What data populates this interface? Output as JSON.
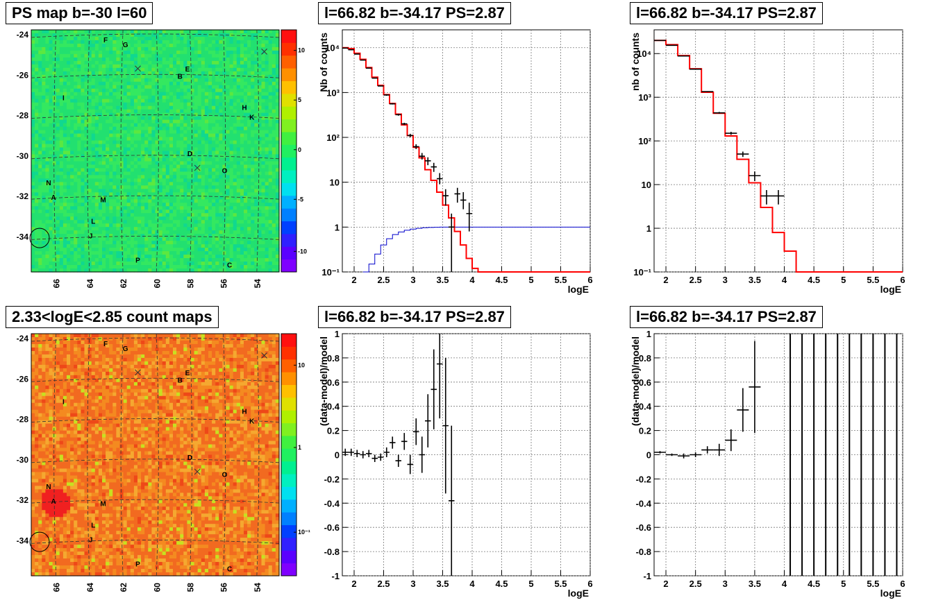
{
  "panel_titles": {
    "ps_map": "PS map b=-30 l=60",
    "count_map": "2.33<logE<2.85 count maps",
    "spec_left": "l=66.82 b=-34.17 PS=2.87",
    "spec_right": "l=66.82 b=-34.17 PS=2.87",
    "res_left": "l=66.82 b=-34.17 PS=2.87",
    "res_right": "l=66.82 b=-34.17 PS=2.87"
  },
  "colors": {
    "model": "#ff0000",
    "efficiency": "#0000cc",
    "data": "#000000",
    "grid": "#777777"
  },
  "chart_data": [
    {
      "type": "heatmap",
      "id": "ps_map",
      "title": "PS map b=-30 l=60",
      "x_ticks": [
        "66",
        "64",
        "62",
        "60",
        "58",
        "56",
        "54"
      ],
      "y_ticks": [
        "-24",
        "-26",
        "-28",
        "-30",
        "-32",
        "-34"
      ],
      "colorbar_ticks": [
        "10",
        "5",
        "0",
        "-5",
        "-10"
      ],
      "colorbar_range": [
        -12,
        12
      ],
      "colorbar_scale": "linear",
      "base_color": "#22e070",
      "sources": [
        {
          "label": "F"
        },
        {
          "label": "G"
        },
        {
          "label": "E"
        },
        {
          "label": "B"
        },
        {
          "label": "I"
        },
        {
          "label": "H"
        },
        {
          "label": "K"
        },
        {
          "label": "D"
        },
        {
          "label": "O"
        },
        {
          "label": "N"
        },
        {
          "label": "A"
        },
        {
          "label": "M"
        },
        {
          "label": "L"
        },
        {
          "label": "J"
        },
        {
          "label": "P"
        },
        {
          "label": "C"
        }
      ]
    },
    {
      "type": "heatmap",
      "id": "count_map",
      "title": "2.33<logE<2.85 count maps",
      "x_ticks": [
        "66",
        "64",
        "62",
        "60",
        "58",
        "56",
        "54"
      ],
      "y_ticks": [
        "-24",
        "-26",
        "-28",
        "-30",
        "-32",
        "-34"
      ],
      "colorbar_ticks": [
        "10",
        "1",
        "10⁻¹"
      ],
      "colorbar_scale": "log",
      "base_color": "#f26a20",
      "sources": [
        {
          "label": "F"
        },
        {
          "label": "G"
        },
        {
          "label": "E"
        },
        {
          "label": "B"
        },
        {
          "label": "I"
        },
        {
          "label": "H"
        },
        {
          "label": "K"
        },
        {
          "label": "D"
        },
        {
          "label": "O"
        },
        {
          "label": "N"
        },
        {
          "label": "A"
        },
        {
          "label": "M"
        },
        {
          "label": "L"
        },
        {
          "label": "J"
        },
        {
          "label": "P"
        },
        {
          "label": "C"
        }
      ]
    },
    {
      "type": "line",
      "id": "spec_left",
      "title": "l=66.82 b=-34.17 PS=2.87",
      "xlabel": "logE",
      "ylabel": "Nb of counts",
      "xlim": [
        1.8,
        6
      ],
      "ylim": [
        0.1,
        25000
      ],
      "yscale": "log",
      "x_ticks": [
        "2",
        "2.5",
        "3",
        "3.5",
        "4",
        "4.5",
        "5",
        "5.5",
        "6"
      ],
      "y_ticks": [
        "10⁻¹",
        "1",
        "10",
        "10²",
        "10³",
        "10⁴"
      ],
      "grid": true,
      "model_step": {
        "edges": [
          1.8,
          1.9,
          2.0,
          2.1,
          2.2,
          2.3,
          2.4,
          2.5,
          2.6,
          2.7,
          2.8,
          2.9,
          3.0,
          3.1,
          3.2,
          3.3,
          3.4,
          3.5,
          3.6,
          3.7,
          3.8,
          3.9,
          4.0,
          4.1,
          4.2,
          6.0
        ],
        "values": [
          10000,
          9500,
          7500,
          5500,
          3600,
          2200,
          1450,
          900,
          570,
          330,
          190,
          110,
          60,
          35,
          19,
          11,
          6,
          3.1,
          1.6,
          0.8,
          0.4,
          0.2,
          0.12,
          0.1,
          0.1
        ]
      },
      "data_points": [
        {
          "x": 1.85,
          "y": 9800,
          "yerr_lo": 9700,
          "yerr_hi": 9900
        },
        {
          "x": 1.95,
          "y": 9000,
          "yerr_lo": 8900,
          "yerr_hi": 9100
        },
        {
          "x": 2.05,
          "y": 7200,
          "yerr_lo": 7100,
          "yerr_hi": 7300
        },
        {
          "x": 2.15,
          "y": 5300,
          "yerr_lo": 5200,
          "yerr_hi": 5400
        },
        {
          "x": 2.25,
          "y": 3500,
          "yerr_lo": 3400,
          "yerr_hi": 3600
        },
        {
          "x": 2.35,
          "y": 2100,
          "yerr_lo": 2050,
          "yerr_hi": 2150
        },
        {
          "x": 2.45,
          "y": 1400,
          "yerr_lo": 1360,
          "yerr_hi": 1440
        },
        {
          "x": 2.55,
          "y": 880,
          "yerr_lo": 850,
          "yerr_hi": 910
        },
        {
          "x": 2.65,
          "y": 560,
          "yerr_lo": 540,
          "yerr_hi": 580
        },
        {
          "x": 2.75,
          "y": 320,
          "yerr_lo": 305,
          "yerr_hi": 335
        },
        {
          "x": 2.85,
          "y": 200,
          "yerr_lo": 188,
          "yerr_hi": 212
        },
        {
          "x": 2.95,
          "y": 110,
          "yerr_lo": 100,
          "yerr_hi": 120
        },
        {
          "x": 3.05,
          "y": 62,
          "yerr_lo": 55,
          "yerr_hi": 70
        },
        {
          "x": 3.15,
          "y": 38,
          "yerr_lo": 32,
          "yerr_hi": 45
        },
        {
          "x": 3.25,
          "y": 30,
          "yerr_lo": 24,
          "yerr_hi": 36
        },
        {
          "x": 3.35,
          "y": 22,
          "yerr_lo": 17,
          "yerr_hi": 27
        },
        {
          "x": 3.45,
          "y": 12,
          "yerr_lo": 9,
          "yerr_hi": 16
        },
        {
          "x": 3.55,
          "y": 5,
          "yerr_lo": 3,
          "yerr_hi": 7
        },
        {
          "x": 3.65,
          "y": 1,
          "yerr_lo": 0.1,
          "yerr_hi": 2
        },
        {
          "x": 3.75,
          "y": 5.5,
          "yerr_lo": 3.5,
          "yerr_hi": 7.5
        },
        {
          "x": 3.85,
          "y": 4,
          "yerr_lo": 2.5,
          "yerr_hi": 6
        },
        {
          "x": 3.95,
          "y": 2,
          "yerr_lo": 0.8,
          "yerr_hi": 3.5
        }
      ],
      "efficiency_step": {
        "edges": [
          2.15,
          2.25,
          2.35,
          2.45,
          2.55,
          2.65,
          2.75,
          2.85,
          2.95,
          3.05,
          3.15,
          3.25,
          3.35,
          3.45,
          6.0
        ],
        "values": [
          0.1,
          0.15,
          0.25,
          0.4,
          0.55,
          0.68,
          0.78,
          0.85,
          0.9,
          0.94,
          0.97,
          0.98,
          0.99,
          1.0
        ]
      }
    },
    {
      "type": "line",
      "id": "spec_right",
      "title": "l=66.82 b=-34.17 PS=2.87",
      "xlabel": "logE",
      "ylabel": "nb of counts",
      "xlim": [
        1.8,
        6
      ],
      "ylim": [
        0.1,
        35000
      ],
      "yscale": "log",
      "x_ticks": [
        "2",
        "2.5",
        "3",
        "3.5",
        "4",
        "4.5",
        "5",
        "5.5",
        "6"
      ],
      "y_ticks": [
        "10⁻¹",
        "1",
        "10",
        "10²",
        "10³",
        "10⁴"
      ],
      "grid": true,
      "model_step": {
        "edges": [
          1.8,
          2.0,
          2.2,
          2.4,
          2.6,
          2.8,
          3.0,
          3.2,
          3.4,
          3.6,
          3.8,
          4.0,
          4.2,
          6.0
        ],
        "values": [
          20000,
          16000,
          9000,
          4500,
          1300,
          430,
          130,
          38,
          11,
          3,
          0.8,
          0.3,
          0.1
        ]
      },
      "data_points": [
        {
          "x": 1.9,
          "y": 20000,
          "yerr_lo": 19800,
          "yerr_hi": 20200
        },
        {
          "x": 2.1,
          "y": 15500,
          "yerr_lo": 15300,
          "yerr_hi": 15700
        },
        {
          "x": 2.3,
          "y": 8800,
          "yerr_lo": 8700,
          "yerr_hi": 8900
        },
        {
          "x": 2.5,
          "y": 4400,
          "yerr_lo": 4300,
          "yerr_hi": 4500
        },
        {
          "x": 2.7,
          "y": 1350,
          "yerr_lo": 1310,
          "yerr_hi": 1390
        },
        {
          "x": 2.9,
          "y": 440,
          "yerr_lo": 420,
          "yerr_hi": 460
        },
        {
          "x": 3.1,
          "y": 150,
          "yerr_lo": 138,
          "yerr_hi": 162
        },
        {
          "x": 3.3,
          "y": 50,
          "yerr_lo": 43,
          "yerr_hi": 57
        },
        {
          "x": 3.5,
          "y": 16,
          "yerr_lo": 12,
          "yerr_hi": 20
        },
        {
          "x": 3.7,
          "y": 5.5,
          "yerr_lo": 3.5,
          "yerr_hi": 7.5
        },
        {
          "x": 3.9,
          "y": 5.5,
          "yerr_lo": 3.5,
          "yerr_hi": 7.5
        }
      ]
    },
    {
      "type": "scatter",
      "id": "res_left",
      "title": "l=66.82 b=-34.17 PS=2.87",
      "xlabel": "logE",
      "ylabel": "(data-model)/model",
      "xlim": [
        1.8,
        6
      ],
      "ylim": [
        -1,
        1
      ],
      "x_ticks": [
        "2",
        "2.5",
        "3",
        "3.5",
        "4",
        "4.5",
        "5",
        "5.5",
        "6"
      ],
      "y_ticks": [
        "-1",
        "-0.8",
        "-0.6",
        "-0.4",
        "-0.2",
        "0",
        "0.2",
        "0.4",
        "0.6",
        "0.8",
        "1"
      ],
      "grid": true,
      "data_points": [
        {
          "x": 1.85,
          "y": 0.02,
          "yerr": 0.03
        },
        {
          "x": 1.95,
          "y": 0.02,
          "yerr": 0.03
        },
        {
          "x": 2.05,
          "y": 0.01,
          "yerr": 0.03
        },
        {
          "x": 2.15,
          "y": 0.0,
          "yerr": 0.03
        },
        {
          "x": 2.25,
          "y": 0.01,
          "yerr": 0.03
        },
        {
          "x": 2.35,
          "y": -0.03,
          "yerr": 0.03
        },
        {
          "x": 2.45,
          "y": -0.02,
          "yerr": 0.03
        },
        {
          "x": 2.55,
          "y": 0.02,
          "yerr": 0.04
        },
        {
          "x": 2.65,
          "y": 0.1,
          "yerr": 0.05
        },
        {
          "x": 2.75,
          "y": -0.05,
          "yerr": 0.05
        },
        {
          "x": 2.85,
          "y": 0.11,
          "yerr": 0.07
        },
        {
          "x": 2.95,
          "y": -0.08,
          "yerr": 0.08
        },
        {
          "x": 3.05,
          "y": 0.19,
          "yerr": 0.11
        },
        {
          "x": 3.15,
          "y": 0.0,
          "yerr": 0.15
        },
        {
          "x": 3.25,
          "y": 0.28,
          "yerr": 0.22
        },
        {
          "x": 3.35,
          "y": 0.54,
          "yerr": 0.33
        },
        {
          "x": 3.45,
          "y": 0.75,
          "yerr": 0.45
        },
        {
          "x": 3.55,
          "y": 0.24,
          "yerr": 0.56
        },
        {
          "x": 3.65,
          "y": -0.38,
          "yerr": 0.62
        }
      ]
    },
    {
      "type": "scatter",
      "id": "res_right",
      "title": "l=66.82 b=-34.17 PS=2.87",
      "xlabel": "logE",
      "ylabel": "(data-model)/model",
      "xlim": [
        1.8,
        6
      ],
      "ylim": [
        -1,
        1
      ],
      "x_ticks": [
        "2",
        "2.5",
        "3",
        "3.5",
        "4",
        "4.5",
        "5",
        "5.5",
        "6"
      ],
      "y_ticks": [
        "-1",
        "-0.8",
        "-0.6",
        "-0.4",
        "-0.2",
        "0",
        "0.2",
        "0.4",
        "0.6",
        "0.8",
        "1"
      ],
      "grid": true,
      "data_points": [
        {
          "x": 1.9,
          "y": 0.02,
          "yerr": 0.01
        },
        {
          "x": 2.1,
          "y": 0.0,
          "yerr": 0.01
        },
        {
          "x": 2.3,
          "y": -0.01,
          "yerr": 0.02
        },
        {
          "x": 2.5,
          "y": 0.0,
          "yerr": 0.02
        },
        {
          "x": 2.7,
          "y": 0.04,
          "yerr": 0.03
        },
        {
          "x": 2.9,
          "y": 0.04,
          "yerr": 0.05
        },
        {
          "x": 3.1,
          "y": 0.12,
          "yerr": 0.09
        },
        {
          "x": 3.3,
          "y": 0.37,
          "yerr": 0.18
        },
        {
          "x": 3.5,
          "y": 0.56,
          "yerr": 0.38
        }
      ],
      "full_error_bars_x": [
        4.1,
        4.3,
        4.5,
        4.7,
        4.9,
        5.1,
        5.3,
        5.5,
        5.7,
        5.9
      ]
    }
  ]
}
